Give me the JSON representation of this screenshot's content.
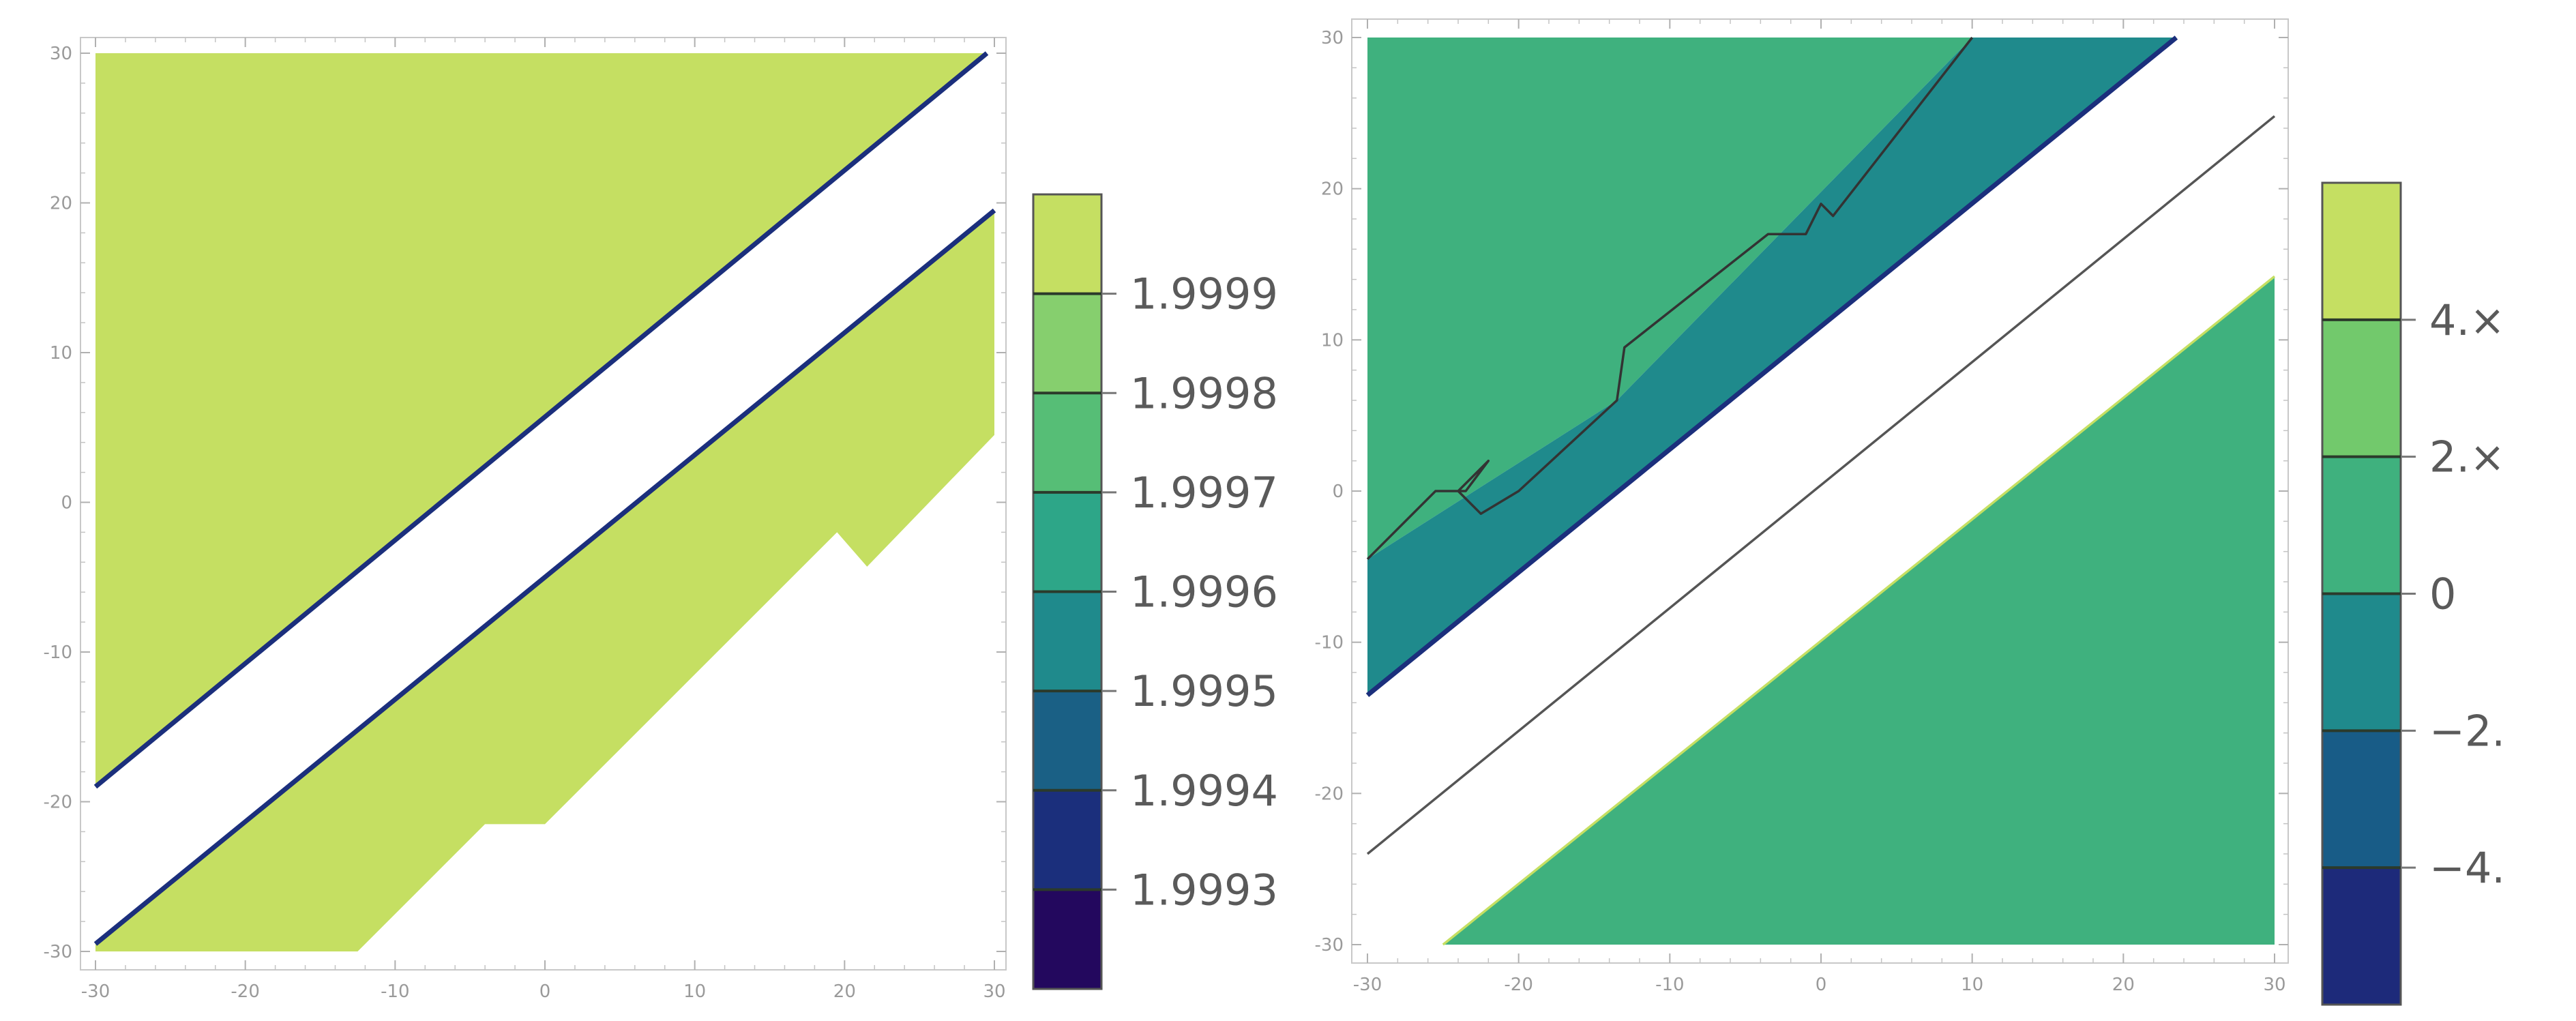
{
  "chart_data": [
    {
      "type": "contour",
      "title": "",
      "xlabel": "",
      "ylabel": "",
      "xlim": [
        -30,
        30
      ],
      "ylim": [
        -30,
        30
      ],
      "x_ticks": [
        "-30",
        "-20",
        "-10",
        "0",
        "10",
        "20",
        "30"
      ],
      "y_ticks": [
        "-30",
        "-20",
        "-10",
        "0",
        "10",
        "20",
        "30"
      ],
      "grid": false,
      "legend_placement": "right",
      "legend_labels": [
        "1.9999",
        "1.9998",
        "1.9997",
        "1.9996",
        "1.9995",
        "1.9994",
        "1.9993"
      ],
      "legend_colors": [
        "#c5df62",
        "#86cf6e",
        "#56be76",
        "#2da688",
        "#1f8a8c",
        "#1a6085",
        "#1b2f7c",
        "#23085e"
      ],
      "regions": [
        {
          "fill": "#c5df62",
          "polygon": [
            [
              -30,
              30
            ],
            [
              29.5,
              30
            ],
            [
              -30,
              -19
            ]
          ]
        },
        {
          "fill": "#c5df62",
          "polygon": [
            [
              -30,
              -29.5
            ],
            [
              30,
              19.5
            ],
            [
              30,
              4.5
            ],
            [
              21.5,
              -4.3
            ],
            [
              19.5,
              -2
            ],
            [
              0,
              -21.5
            ],
            [
              -4,
              -21.5
            ],
            [
              -12.5,
              -30
            ],
            [
              -30,
              -30
            ]
          ]
        }
      ],
      "boundaries": [
        {
          "color": "#1b2f7c",
          "points": [
            [
              -30,
              -19
            ],
            [
              29.5,
              30
            ]
          ]
        },
        {
          "color": "#1b2f7c",
          "points": [
            [
              -30,
              -29.5
            ],
            [
              30,
              19.5
            ]
          ]
        }
      ]
    },
    {
      "type": "contour",
      "title": "",
      "xlabel": "",
      "ylabel": "",
      "xlim": [
        -30,
        30
      ],
      "ylim": [
        -30,
        30
      ],
      "x_ticks": [
        "-30",
        "-20",
        "-10",
        "0",
        "10",
        "20",
        "30"
      ],
      "y_ticks": [
        "-30",
        "-20",
        "-10",
        "0",
        "10",
        "20",
        "30"
      ],
      "grid": false,
      "legend_placement": "right",
      "legend_labels": [
        "4.×",
        "2.×",
        "0",
        "−2.",
        "−4."
      ],
      "legend_colors": [
        "#c5df62",
        "#72c96c",
        "#3fb17e",
        "#1f8a8c",
        "#185c87",
        "#1d2a7a"
      ],
      "regions": [
        {
          "fill": "#3fb17e",
          "polygon": [
            [
              -30,
              30
            ],
            [
              10,
              30
            ],
            [
              -13.5,
              6
            ],
            [
              -30,
              -4.5
            ]
          ]
        },
        {
          "fill": "#1f8a8c",
          "polygon": [
            [
              -30,
              -4.5
            ],
            [
              -13.5,
              6
            ],
            [
              10,
              30
            ],
            [
              23.5,
              30
            ],
            [
              -30,
              -13.5
            ]
          ]
        },
        {
          "fill": "#3fb17e",
          "polygon": [
            [
              -25,
              -30
            ],
            [
              30,
              14.2
            ],
            [
              30,
              -30
            ]
          ]
        }
      ],
      "boundaries": [
        {
          "color": "#333333",
          "points": [
            [
              -30,
              -4.5
            ],
            [
              -25.5,
              0
            ],
            [
              -23.5,
              0
            ],
            [
              -22,
              2
            ],
            [
              -24,
              0
            ],
            [
              -22.5,
              -1.5
            ],
            [
              -20,
              0
            ],
            [
              -13.5,
              6
            ],
            [
              -13,
              9.5
            ],
            [
              -3.5,
              17
            ],
            [
              -1,
              17
            ],
            [
              0,
              19
            ],
            [
              0.8,
              18.2
            ],
            [
              10,
              30
            ]
          ]
        },
        {
          "color": "#1b2f7c",
          "points": [
            [
              -30,
              -13.5
            ],
            [
              23.5,
              30
            ]
          ]
        },
        {
          "color": "#555555",
          "points": [
            [
              -30,
              -24
            ],
            [
              30,
              24.8
            ]
          ]
        },
        {
          "color": "#c5df62",
          "points": [
            [
              -25,
              -30
            ],
            [
              30,
              14.2
            ]
          ]
        }
      ]
    }
  ]
}
